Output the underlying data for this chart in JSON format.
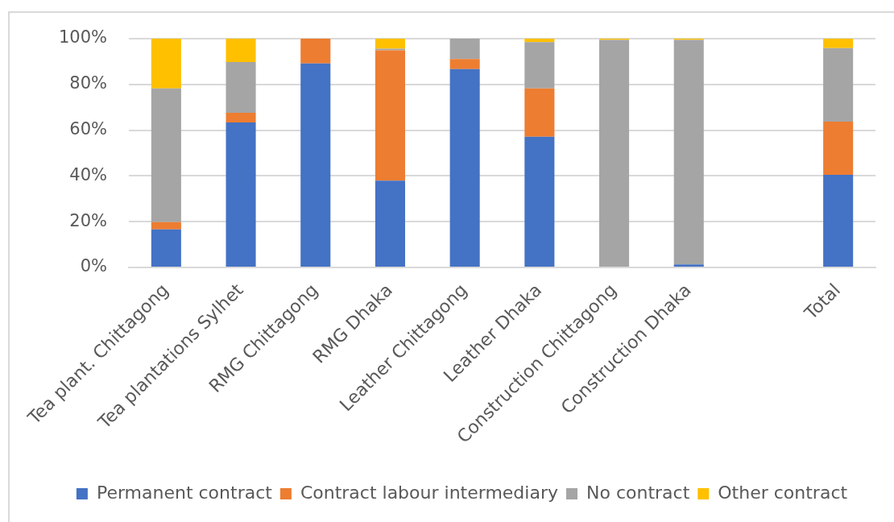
{
  "chart_data": {
    "type": "bar",
    "stacked": true,
    "categories": [
      "Tea plant. Chittagong",
      "Tea plantations Sylhet",
      "RMG Chittagong",
      "RMG Dhaka",
      "Leather Chittagong",
      "Leather Dhaka",
      "Construction Chittagong",
      "Construction Dhaka",
      null,
      "Total"
    ],
    "series": [
      {
        "name": "Permanent contract",
        "color": "#4472c4",
        "values": [
          16.6,
          63.4,
          89.2,
          37.9,
          86.7,
          57.1,
          0,
          1.3,
          null,
          40.5
        ]
      },
      {
        "name": "Contract labour intermediary",
        "color": "#ed7d31",
        "values": [
          3.2,
          4.2,
          10.8,
          57.0,
          4.4,
          21.2,
          0,
          0,
          null,
          23.2
        ]
      },
      {
        "name": "No contract",
        "color": "#a5a5a5",
        "values": [
          58.5,
          22.2,
          0,
          0.7,
          8.9,
          20.2,
          99.5,
          98.2,
          null,
          32.2
        ]
      },
      {
        "name": "Other contract",
        "color": "#ffc000",
        "values": [
          21.7,
          10.2,
          0,
          4.4,
          0,
          1.5,
          0.5,
          0.5,
          null,
          4.1
        ]
      }
    ],
    "ylim": [
      0,
      100
    ],
    "yticks": [
      {
        "value": 0,
        "label": "0%"
      },
      {
        "value": 20,
        "label": "20%"
      },
      {
        "value": 40,
        "label": "40%"
      },
      {
        "value": 60,
        "label": "60%"
      },
      {
        "value": 80,
        "label": "80%"
      },
      {
        "value": 100,
        "label": "100%"
      }
    ],
    "grid": "y",
    "legend": "bottom"
  }
}
